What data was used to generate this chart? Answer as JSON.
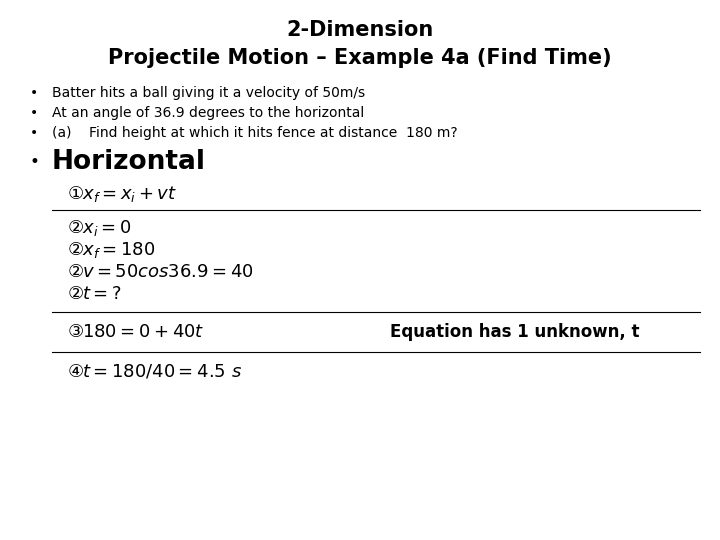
{
  "title_line1": "2-Dimension",
  "title_line2": "Projectile Motion – Example 4a (Find Time)",
  "bullet1": "Batter hits a ball giving it a velocity of 50m/s",
  "bullet2": "At an angle of 36.9 degrees to the horizontal",
  "bullet3": "(a)    Find height at which it hits fence at distance  180 m?",
  "header": "Horizontal",
  "eq1_circled": "①",
  "eq1_math": "$x_f = x_i + vt$",
  "eq2a_circled": "②",
  "eq2a_math": "$x_i = 0$",
  "eq2b_circled": "②",
  "eq2b_math": "$x_f = 180$",
  "eq2c_circled": "②",
  "eq2c_math": "$v = 50cos36.9 = 40$",
  "eq2d_circled": "②",
  "eq2d_math": "$t = ?$",
  "eq3_circled": "③",
  "eq3_math": "$180 = 0 + 40t$",
  "eq3note": "Equation has 1 unknown, t",
  "eq4_circled": "④",
  "eq4_math": "$t = 180 /  40 = 4.5\\ s$",
  "bg_color": "#ffffff",
  "text_color": "#000000"
}
